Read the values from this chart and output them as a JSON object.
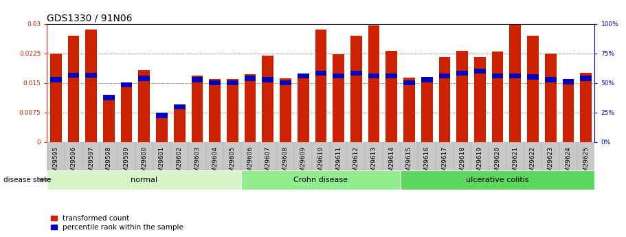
{
  "title": "GDS1330 / 91N06",
  "samples": [
    "GSM29595",
    "GSM29596",
    "GSM29597",
    "GSM29598",
    "GSM29599",
    "GSM29600",
    "GSM29601",
    "GSM29602",
    "GSM29603",
    "GSM29604",
    "GSM29605",
    "GSM29606",
    "GSM29607",
    "GSM29608",
    "GSM29609",
    "GSM29610",
    "GSM29611",
    "GSM29612",
    "GSM29613",
    "GSM29614",
    "GSM29615",
    "GSM29616",
    "GSM29617",
    "GSM29618",
    "GSM29619",
    "GSM29620",
    "GSM29621",
    "GSM29622",
    "GSM29623",
    "GSM29624",
    "GSM29625"
  ],
  "red_values": [
    0.0225,
    0.027,
    0.0285,
    0.012,
    0.0148,
    0.0182,
    0.0072,
    0.009,
    0.0168,
    0.016,
    0.016,
    0.0172,
    0.022,
    0.0162,
    0.017,
    0.0285,
    0.0222,
    0.027,
    0.0295,
    0.0232,
    0.0163,
    0.0163,
    0.0215,
    0.0232,
    0.0215,
    0.023,
    0.0298,
    0.027,
    0.0225,
    0.0158,
    0.0175
  ],
  "blue_values": [
    0.0158,
    0.017,
    0.017,
    0.0113,
    0.0145,
    0.0162,
    0.0068,
    0.009,
    0.0158,
    0.015,
    0.015,
    0.0162,
    0.0158,
    0.015,
    0.0168,
    0.0175,
    0.0168,
    0.0175,
    0.0168,
    0.0168,
    0.015,
    0.0158,
    0.0168,
    0.0175,
    0.018,
    0.0168,
    0.0168,
    0.0165,
    0.0158,
    0.0153,
    0.0162
  ],
  "groups": [
    {
      "label": "normal",
      "start": 0,
      "end": 11,
      "color": "#d8f5c8"
    },
    {
      "label": "Crohn disease",
      "start": 11,
      "end": 20,
      "color": "#90ee90"
    },
    {
      "label": "ulcerative colitis",
      "start": 20,
      "end": 31,
      "color": "#5cd65c"
    }
  ],
  "red_color": "#cc2200",
  "blue_color": "#0000bb",
  "ylim_left": [
    0,
    0.03
  ],
  "ylim_right": [
    0,
    100
  ],
  "yticks_left": [
    0,
    0.0075,
    0.015,
    0.0225,
    0.03
  ],
  "yticks_right": [
    0,
    25,
    50,
    75,
    100
  ],
  "ylabel_left_color": "#cc2200",
  "ylabel_right_color": "#0000bb",
  "grid_color": "#000000",
  "background_color": "#ffffff",
  "bar_width": 0.65,
  "blue_bar_height": 0.0013,
  "title_fontsize": 10,
  "tick_fontsize": 6.5,
  "label_fontsize": 8,
  "xtick_bg_color": "#c8c8c8"
}
